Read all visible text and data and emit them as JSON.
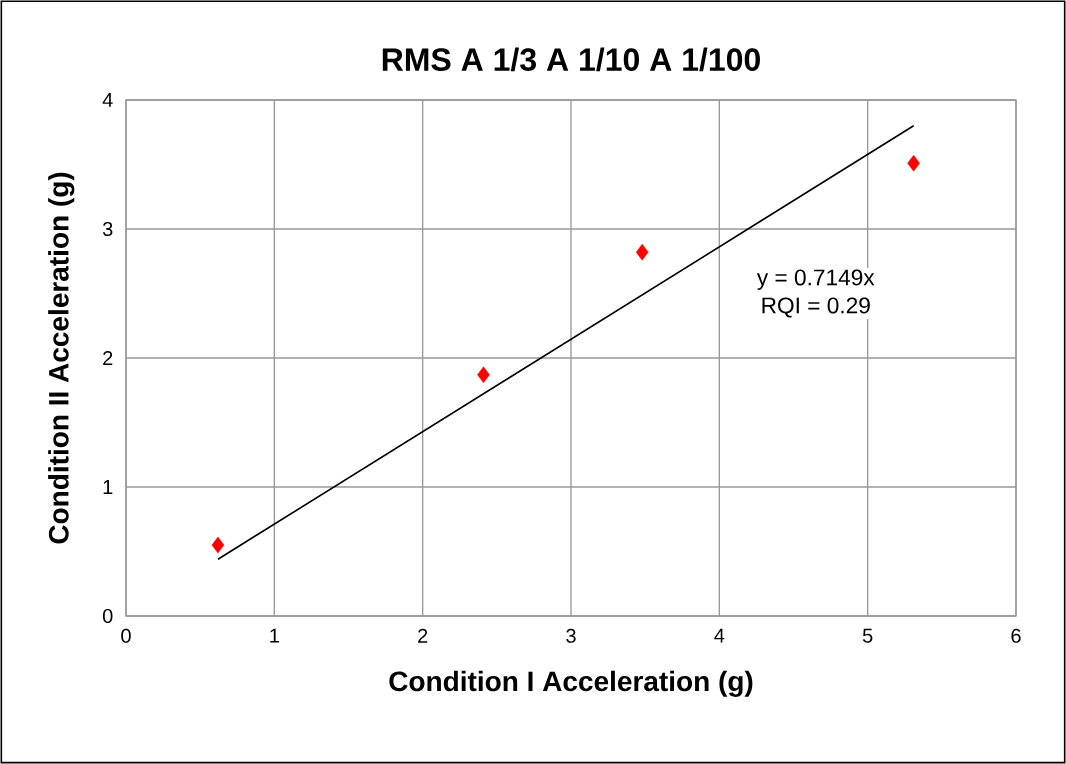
{
  "chart_data": {
    "type": "scatter",
    "title": "RMS   A 1/3    A 1/10    A 1/100",
    "xlabel": "Condition I Acceleration (g)",
    "ylabel": "Condition II Acceleration (g)",
    "series": [
      {
        "color": "#ff0000",
        "marker": "diamond",
        "x": [
          0.62,
          2.41,
          3.48,
          5.31
        ],
        "values": [
          0.55,
          1.87,
          2.82,
          3.51
        ]
      },
      {
        "type": "line",
        "color": "#000000",
        "marker": "none",
        "x": [
          0.62,
          5.31
        ],
        "values": [
          0.44,
          3.8
        ]
      }
    ],
    "annotations": [
      "y = 0.7149x",
      "RQI = 0.29"
    ],
    "xlim": [
      0,
      6
    ],
    "ylim": [
      0,
      4
    ],
    "xticks": [
      0,
      1,
      2,
      3,
      4,
      5,
      6
    ],
    "yticks": [
      0,
      1,
      2,
      3,
      4
    ],
    "grid": true
  }
}
